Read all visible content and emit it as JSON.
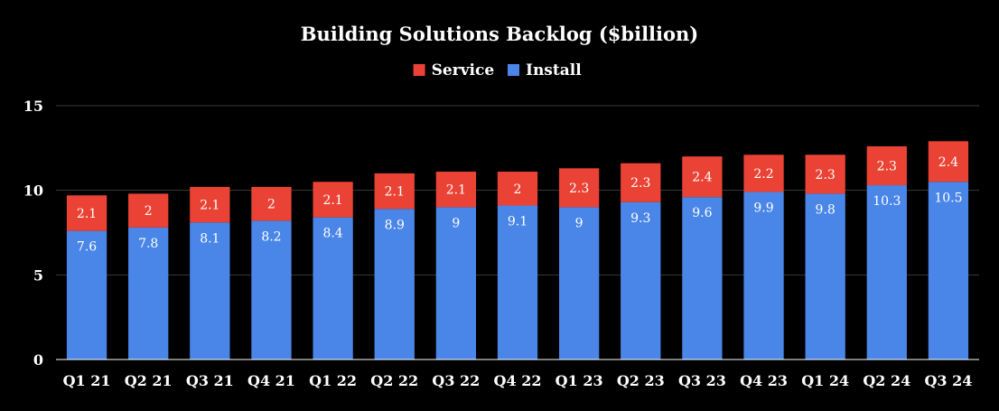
{
  "chart_data": {
    "type": "bar",
    "stacked": true,
    "title": "Building Solutions Backlog ($billion)",
    "xlabel": "",
    "ylabel": "",
    "ylim": [
      0,
      15
    ],
    "yticks": [
      0,
      5,
      10,
      15
    ],
    "grid": true,
    "legend_position": "top-center",
    "categories": [
      "Q1 21",
      "Q2 21",
      "Q3 21",
      "Q4 21",
      "Q1 22",
      "Q2 22",
      "Q3 22",
      "Q4 22",
      "Q1 23",
      "Q2 23",
      "Q3 23",
      "Q4 23",
      "Q1 24",
      "Q2 24",
      "Q3 24"
    ],
    "series": [
      {
        "name": "Install",
        "color": "#4a86e8",
        "values": [
          7.6,
          7.8,
          8.1,
          8.2,
          8.4,
          8.9,
          9,
          9.1,
          9,
          9.3,
          9.6,
          9.9,
          9.8,
          10.3,
          10.5
        ]
      },
      {
        "name": "Service",
        "color": "#ea4335",
        "values": [
          2.1,
          2,
          2.1,
          2,
          2.1,
          2.1,
          2.1,
          2,
          2.3,
          2.3,
          2.4,
          2.2,
          2.3,
          2.3,
          2.4
        ]
      }
    ],
    "legend_order": [
      "Service",
      "Install"
    ]
  }
}
